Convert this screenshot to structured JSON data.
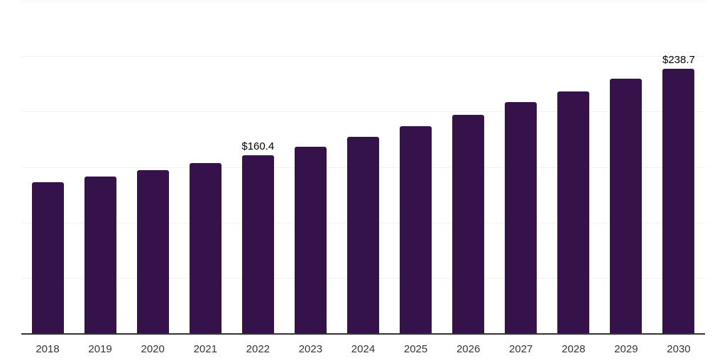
{
  "chart_data": {
    "type": "bar",
    "title": "",
    "xlabel": "",
    "ylabel": "",
    "categories": [
      "2018",
      "2019",
      "2020",
      "2021",
      "2022",
      "2023",
      "2024",
      "2025",
      "2026",
      "2027",
      "2028",
      "2029",
      "2030"
    ],
    "values": [
      136.0,
      141.5,
      147.1,
      153.5,
      160.4,
      168.0,
      177.1,
      186.6,
      196.8,
      208.3,
      218.3,
      229.9,
      238.7
    ],
    "data_labels": [
      {
        "category": "2022",
        "text": "$160.4"
      },
      {
        "category": "2030",
        "text": "$238.7"
      }
    ],
    "ylim": [
      0,
      300
    ],
    "gridline_step": 50,
    "grid": true,
    "y_tick_labels_visible": false,
    "legend": "none",
    "colors": {
      "bar": "#351249",
      "gridline": "#f2f2f2",
      "axis_line": "#333333",
      "tick_text": "#333333",
      "data_label_text": "#000000",
      "background": "#ffffff"
    }
  }
}
